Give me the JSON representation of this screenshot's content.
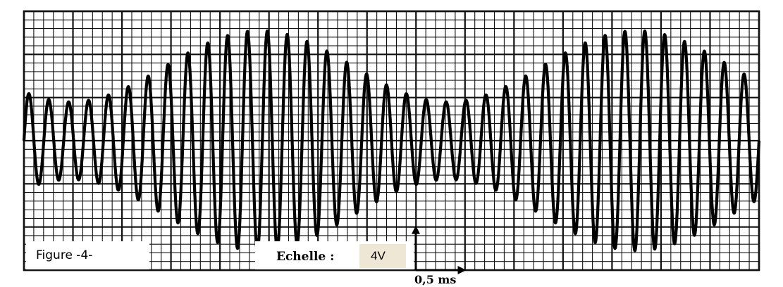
{
  "figure": {
    "label": "Figure -4-",
    "scale_label": "Echelle :",
    "vertical_scale": "4V",
    "horizontal_scale": "0,5 ms"
  },
  "colors": {
    "grid": "#111111",
    "trace": "#000000",
    "background": "#ffffff"
  },
  "chart_data": {
    "type": "line",
    "grid": true,
    "divisions": {
      "x": 15,
      "y": 6,
      "subdivisions": 5
    },
    "vertical_scale_per_div": "4V",
    "horizontal_scale_per_div": "0,5 ms",
    "ylim_div": [
      -3,
      3
    ],
    "xlim_div": [
      0,
      15
    ],
    "signal": {
      "description_type": "amplitude-modulated sinusoid",
      "carrier_cycles": 37,
      "envelope_max_div": 2.55,
      "envelope_min_div": 0.9,
      "envelope_cycles": 2,
      "envelope_peaks_div": [
        4.8,
        12.5
      ],
      "envelope_troughs_div": [
        0.5,
        8.9
      ]
    }
  }
}
